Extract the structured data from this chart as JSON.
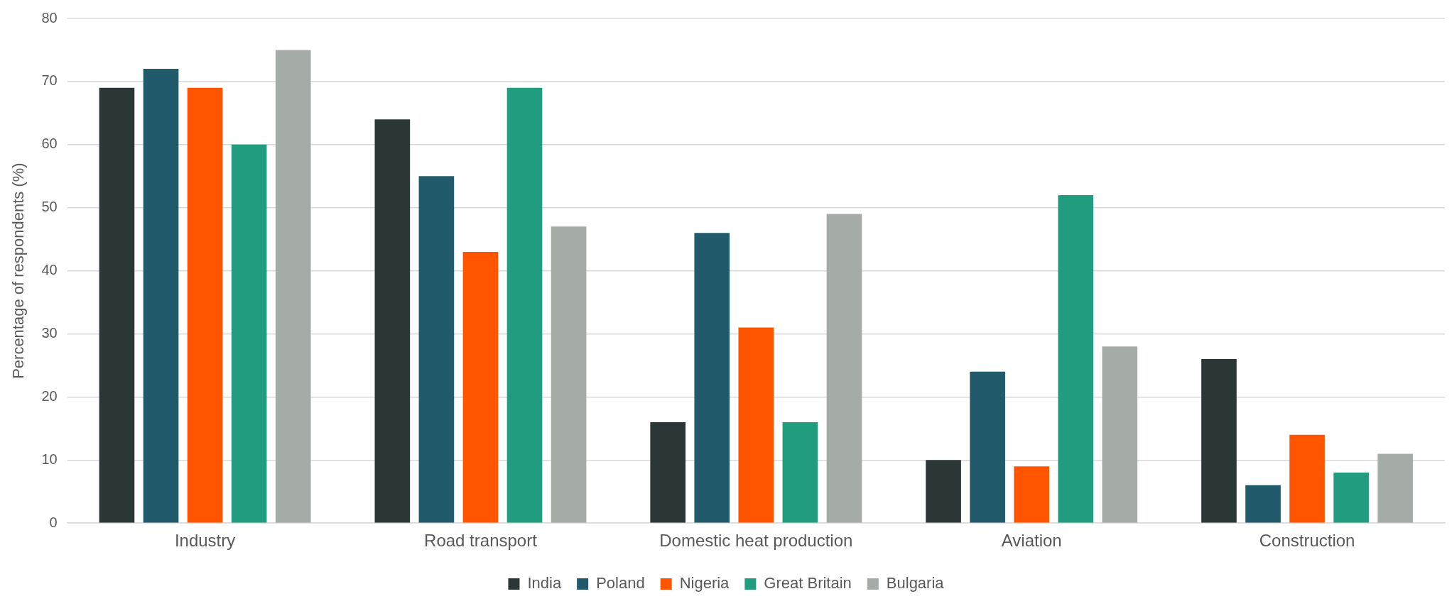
{
  "chart_data": {
    "type": "bar",
    "ylabel": "Percentage of respondents (%)",
    "categories": [
      "Industry",
      "Road transport",
      "Domestic heat production",
      "Aviation",
      "Construction"
    ],
    "series": [
      {
        "name": "India",
        "color": "#2b3637",
        "values": [
          69,
          64,
          16,
          10,
          26
        ]
      },
      {
        "name": "Poland",
        "color": "#215a6a",
        "values": [
          72,
          55,
          46,
          24,
          6
        ]
      },
      {
        "name": "Nigeria",
        "color": "#ff5500",
        "values": [
          69,
          43,
          31,
          9,
          14
        ]
      },
      {
        "name": "Great Britain",
        "color": "#229c7e",
        "values": [
          60,
          69,
          16,
          52,
          8
        ]
      },
      {
        "name": "Bulgaria",
        "color": "#a5aca7",
        "values": [
          75,
          47,
          49,
          28,
          11
        ]
      }
    ],
    "ylim": [
      0,
      80
    ],
    "yticks": [
      0,
      10,
      20,
      30,
      40,
      50,
      60,
      70,
      80
    ],
    "grid": "y",
    "legend": "bottom"
  }
}
